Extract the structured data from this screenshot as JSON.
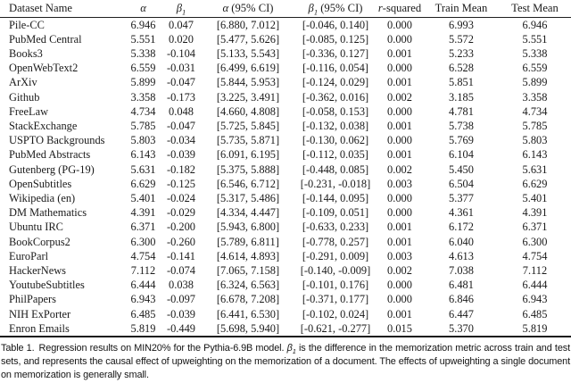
{
  "page": {
    "background_color": "#ffffff",
    "text_color": "#1a1a1a",
    "rule_color": "#1f1f1f"
  },
  "table": {
    "columns": [
      {
        "name": "dataset-name",
        "align": "left",
        "parts": [
          {
            "t": "Dataset Name"
          }
        ]
      },
      {
        "name": "alpha",
        "parts": [
          {
            "t": "α",
            "i": true
          }
        ]
      },
      {
        "name": "beta1",
        "parts": [
          {
            "t": "β",
            "i": true
          },
          {
            "t": "1",
            "i": true,
            "sub": true
          }
        ]
      },
      {
        "name": "alpha-ci",
        "parts": [
          {
            "t": "α",
            "i": true
          },
          {
            "t": " (95% CI)"
          }
        ]
      },
      {
        "name": "beta1-ci",
        "parts": [
          {
            "t": "β",
            "i": true
          },
          {
            "t": "1",
            "i": true,
            "sub": true
          },
          {
            "t": " (95% CI)"
          }
        ]
      },
      {
        "name": "r-squared",
        "parts": [
          {
            "t": "r",
            "i": true
          },
          {
            "t": "-squared"
          }
        ]
      },
      {
        "name": "train-mean",
        "parts": [
          {
            "t": "Train Mean"
          }
        ]
      },
      {
        "name": "test-mean",
        "parts": [
          {
            "t": "Test Mean"
          }
        ]
      }
    ],
    "rows": [
      [
        "Pile-CC",
        "6.946",
        "0.047",
        "[6.880, 7.012]",
        "[-0.046, 0.140]",
        "0.000",
        "6.993",
        "6.946"
      ],
      [
        "PubMed Central",
        "5.551",
        "0.020",
        "[5.477, 5.626]",
        "[-0.085, 0.125]",
        "0.000",
        "5.572",
        "5.551"
      ],
      [
        "Books3",
        "5.338",
        "-0.104",
        "[5.133, 5.543]",
        "[-0.336, 0.127]",
        "0.001",
        "5.233",
        "5.338"
      ],
      [
        "OpenWebText2",
        "6.559",
        "-0.031",
        "[6.499, 6.619]",
        "[-0.116, 0.054]",
        "0.000",
        "6.528",
        "6.559"
      ],
      [
        "ArXiv",
        "5.899",
        "-0.047",
        "[5.844, 5.953]",
        "[-0.124, 0.029]",
        "0.001",
        "5.851",
        "5.899"
      ],
      [
        "Github",
        "3.358",
        "-0.173",
        "[3.225, 3.491]",
        "[-0.362, 0.016]",
        "0.002",
        "3.185",
        "3.358"
      ],
      [
        "FreeLaw",
        "4.734",
        "0.048",
        "[4.660, 4.808]",
        "[-0.058, 0.153]",
        "0.000",
        "4.781",
        "4.734"
      ],
      [
        "StackExchange",
        "5.785",
        "-0.047",
        "[5.725, 5.845]",
        "[-0.132, 0.038]",
        "0.001",
        "5.738",
        "5.785"
      ],
      [
        "USPTO Backgrounds",
        "5.803",
        "-0.034",
        "[5.735, 5.871]",
        "[-0.130, 0.062]",
        "0.000",
        "5.769",
        "5.803"
      ],
      [
        "PubMed Abstracts",
        "6.143",
        "-0.039",
        "[6.091, 6.195]",
        "[-0.112, 0.035]",
        "0.001",
        "6.104",
        "6.143"
      ],
      [
        "Gutenberg (PG-19)",
        "5.631",
        "-0.182",
        "[5.375, 5.888]",
        "[-0.448, 0.085]",
        "0.002",
        "5.450",
        "5.631"
      ],
      [
        "OpenSubtitles",
        "6.629",
        "-0.125",
        "[6.546, 6.712]",
        "[-0.231, -0.018]",
        "0.003",
        "6.504",
        "6.629"
      ],
      [
        "Wikipedia (en)",
        "5.401",
        "-0.024",
        "[5.317, 5.486]",
        "[-0.144, 0.095]",
        "0.000",
        "5.377",
        "5.401"
      ],
      [
        "DM Mathematics",
        "4.391",
        "-0.029",
        "[4.334, 4.447]",
        "[-0.109, 0.051]",
        "0.000",
        "4.361",
        "4.391"
      ],
      [
        "Ubuntu IRC",
        "6.371",
        "-0.200",
        "[5.943, 6.800]",
        "[-0.633, 0.233]",
        "0.001",
        "6.172",
        "6.371"
      ],
      [
        "BookCorpus2",
        "6.300",
        "-0.260",
        "[5.789, 6.811]",
        "[-0.778, 0.257]",
        "0.001",
        "6.040",
        "6.300"
      ],
      [
        "EuroParl",
        "4.754",
        "-0.141",
        "[4.614, 4.893]",
        "[-0.291, 0.009]",
        "0.003",
        "4.613",
        "4.754"
      ],
      [
        "HackerNews",
        "7.112",
        "-0.074",
        "[7.065, 7.158]",
        "[-0.140, -0.009]",
        "0.002",
        "7.038",
        "7.112"
      ],
      [
        "YoutubeSubtitles",
        "6.444",
        "0.038",
        "[6.324, 6.563]",
        "[-0.101, 0.176]",
        "0.000",
        "6.481",
        "6.444"
      ],
      [
        "PhilPapers",
        "6.943",
        "-0.097",
        "[6.678, 7.208]",
        "[-0.371, 0.177]",
        "0.000",
        "6.846",
        "6.943"
      ],
      [
        "NIH ExPorter",
        "6.485",
        "-0.039",
        "[6.441, 6.530]",
        "[-0.102, 0.024]",
        "0.001",
        "6.447",
        "6.485"
      ],
      [
        "Enron Emails",
        "5.819",
        "-0.449",
        "[5.698, 5.940]",
        "[-0.621, -0.277]",
        "0.015",
        "5.370",
        "5.819"
      ]
    ]
  },
  "caption": {
    "label": "Table 1.",
    "parts": [
      {
        "t": "Regression results on MIN20% for the Pythia-6.9B model. "
      },
      {
        "t": "β",
        "i": true
      },
      {
        "t": "1",
        "i": true,
        "sub": true
      },
      {
        "t": " is the difference in the memorization metric across train and test sets, and represents the causal effect of upweighting on the memorization of a document. The effects of upweighting a single document on memorization is generally small."
      }
    ]
  }
}
